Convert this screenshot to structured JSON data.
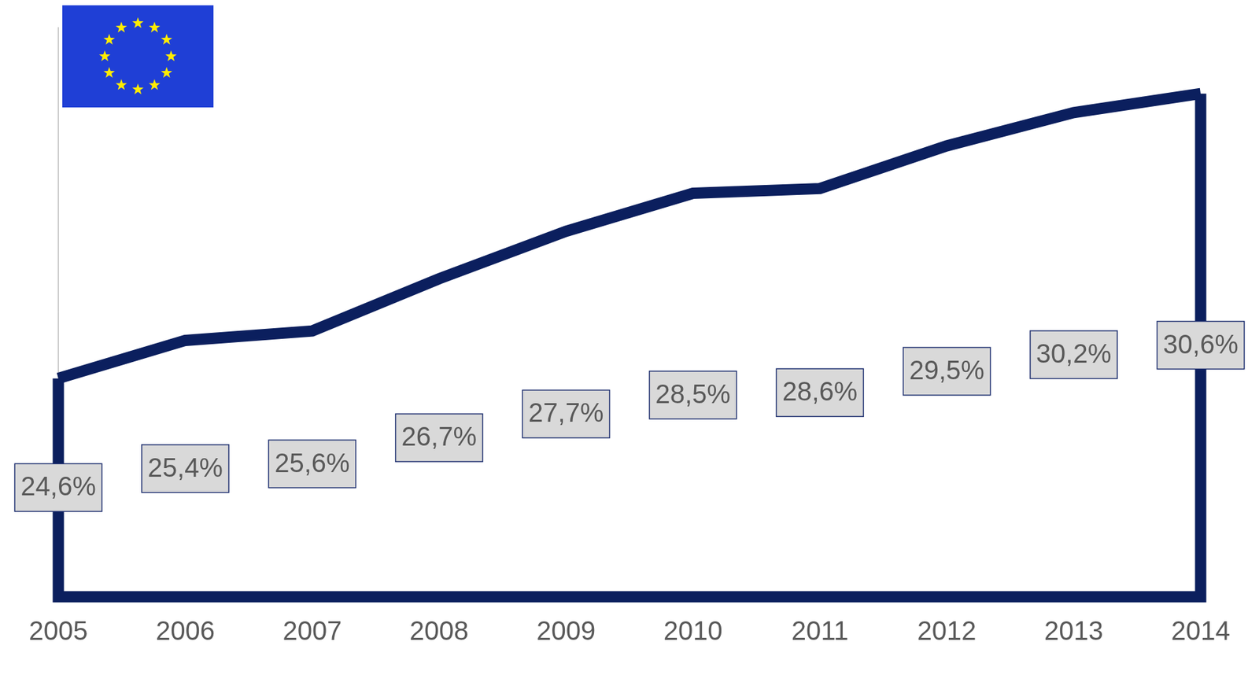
{
  "chart_data": {
    "type": "line",
    "categories": [
      "2005",
      "2006",
      "2007",
      "2008",
      "2009",
      "2010",
      "2011",
      "2012",
      "2013",
      "2014"
    ],
    "values": [
      24.6,
      25.4,
      25.6,
      26.7,
      27.7,
      28.5,
      28.6,
      29.5,
      30.2,
      30.6
    ],
    "value_labels": [
      "24,6%",
      "25,4%",
      "25,6%",
      "26,7%",
      "27,7%",
      "28,5%",
      "28,6%",
      "29,5%",
      "30,2%",
      "30,6%"
    ],
    "data_labels": true,
    "color": "#0b1f5e",
    "ylim": [
      20,
      32
    ],
    "tick_labels": "x",
    "grid": false
  }
}
